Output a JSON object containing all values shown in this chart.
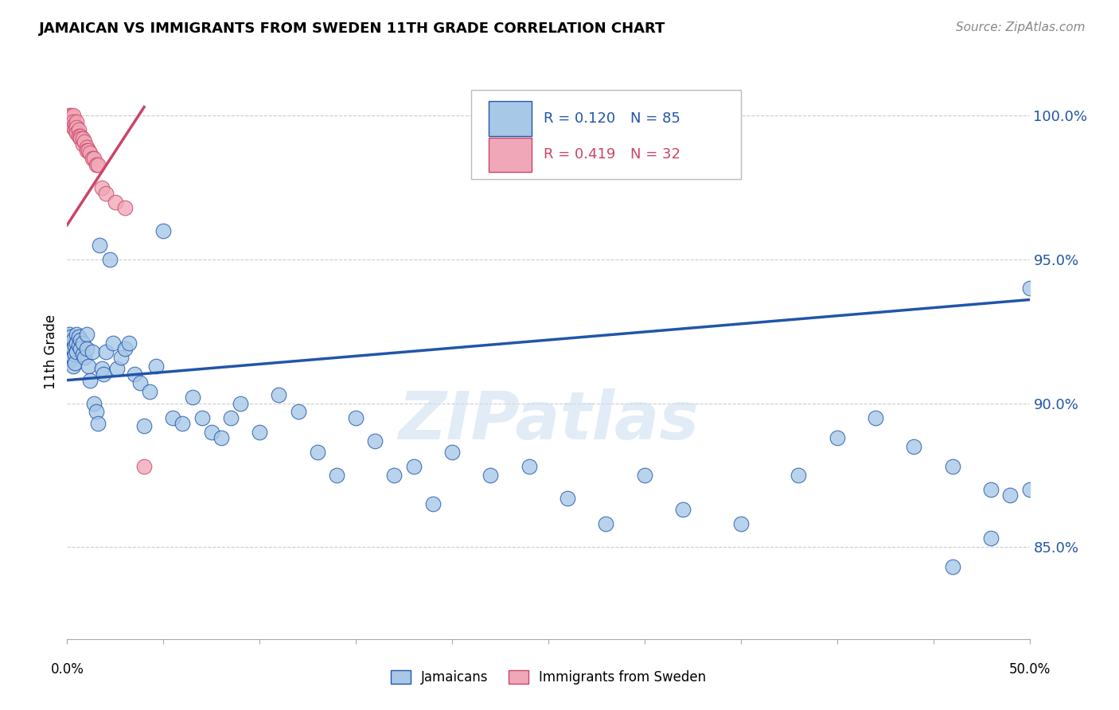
{
  "title": "JAMAICAN VS IMMIGRANTS FROM SWEDEN 11TH GRADE CORRELATION CHART",
  "source": "Source: ZipAtlas.com",
  "ylabel": "11th Grade",
  "watermark": "ZIPatlas",
  "blue_R": 0.12,
  "blue_N": 85,
  "pink_R": 0.419,
  "pink_N": 32,
  "blue_color": "#a8c8e8",
  "pink_color": "#f0a8b8",
  "blue_line_color": "#2255aa",
  "pink_line_color": "#cc4466",
  "legend_blue_label": "Jamaicans",
  "legend_pink_label": "Immigrants from Sweden",
  "xlim": [
    0.0,
    0.5
  ],
  "ylim": [
    0.818,
    1.018
  ],
  "yticks": [
    0.85,
    0.9,
    0.95,
    1.0
  ],
  "ytick_labels": [
    "85.0%",
    "90.0%",
    "95.0%",
    "100.0%"
  ],
  "blue_x": [
    0.001,
    0.001,
    0.001,
    0.002,
    0.002,
    0.002,
    0.002,
    0.003,
    0.003,
    0.003,
    0.003,
    0.004,
    0.004,
    0.004,
    0.005,
    0.005,
    0.005,
    0.006,
    0.006,
    0.007,
    0.007,
    0.008,
    0.008,
    0.009,
    0.01,
    0.01,
    0.011,
    0.012,
    0.013,
    0.014,
    0.015,
    0.016,
    0.017,
    0.018,
    0.019,
    0.02,
    0.022,
    0.024,
    0.026,
    0.028,
    0.03,
    0.032,
    0.035,
    0.038,
    0.04,
    0.043,
    0.046,
    0.05,
    0.055,
    0.06,
    0.065,
    0.07,
    0.075,
    0.08,
    0.085,
    0.09,
    0.1,
    0.11,
    0.12,
    0.13,
    0.14,
    0.15,
    0.16,
    0.17,
    0.18,
    0.19,
    0.2,
    0.22,
    0.24,
    0.26,
    0.28,
    0.3,
    0.32,
    0.35,
    0.38,
    0.4,
    0.42,
    0.44,
    0.46,
    0.48,
    0.5,
    0.5,
    0.49,
    0.48,
    0.46
  ],
  "blue_y": [
    0.924,
    0.921,
    0.918,
    0.923,
    0.92,
    0.917,
    0.915,
    0.922,
    0.919,
    0.916,
    0.913,
    0.92,
    0.917,
    0.914,
    0.924,
    0.921,
    0.918,
    0.923,
    0.92,
    0.922,
    0.919,
    0.917,
    0.921,
    0.916,
    0.924,
    0.919,
    0.913,
    0.908,
    0.918,
    0.9,
    0.897,
    0.893,
    0.955,
    0.912,
    0.91,
    0.918,
    0.95,
    0.921,
    0.912,
    0.916,
    0.919,
    0.921,
    0.91,
    0.907,
    0.892,
    0.904,
    0.913,
    0.96,
    0.895,
    0.893,
    0.902,
    0.895,
    0.89,
    0.888,
    0.895,
    0.9,
    0.89,
    0.903,
    0.897,
    0.883,
    0.875,
    0.895,
    0.887,
    0.875,
    0.878,
    0.865,
    0.883,
    0.875,
    0.878,
    0.867,
    0.858,
    0.875,
    0.863,
    0.858,
    0.875,
    0.888,
    0.895,
    0.885,
    0.878,
    0.87,
    0.94,
    0.87,
    0.868,
    0.853,
    0.843
  ],
  "pink_x": [
    0.001,
    0.001,
    0.002,
    0.002,
    0.003,
    0.003,
    0.003,
    0.004,
    0.004,
    0.005,
    0.005,
    0.005,
    0.006,
    0.006,
    0.007,
    0.007,
    0.008,
    0.008,
    0.009,
    0.01,
    0.01,
    0.011,
    0.012,
    0.013,
    0.014,
    0.015,
    0.016,
    0.018,
    0.02,
    0.025,
    0.03,
    0.04
  ],
  "pink_y": [
    1.0,
    0.998,
    1.0,
    0.998,
    1.0,
    0.998,
    0.996,
    0.997,
    0.995,
    0.998,
    0.996,
    0.994,
    0.995,
    0.993,
    0.993,
    0.992,
    0.99,
    0.992,
    0.991,
    0.989,
    0.988,
    0.988,
    0.987,
    0.985,
    0.985,
    0.983,
    0.983,
    0.975,
    0.973,
    0.97,
    0.968,
    0.878
  ],
  "blue_trend_x": [
    0.0,
    0.5
  ],
  "blue_trend_y": [
    0.908,
    0.936
  ],
  "pink_trend_x": [
    0.0,
    0.04
  ],
  "pink_trend_y": [
    0.962,
    1.003
  ]
}
